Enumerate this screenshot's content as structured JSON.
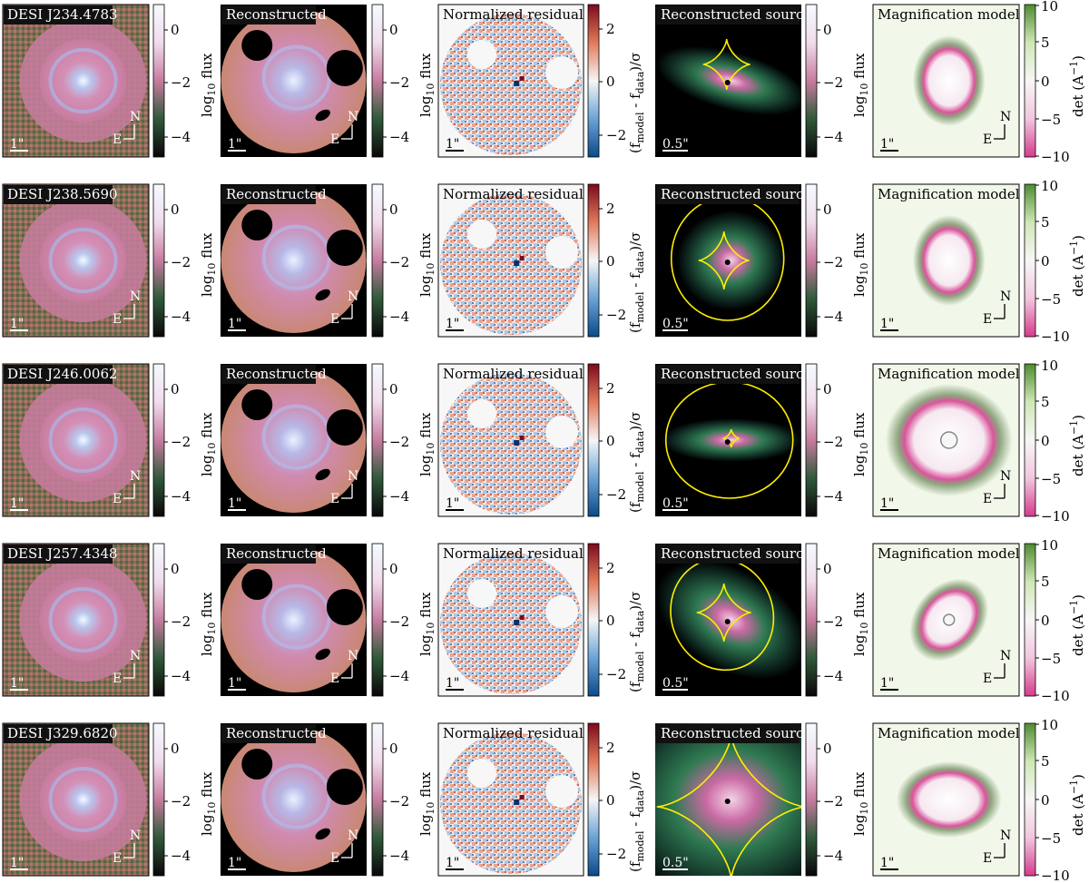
{
  "rows": [
    {
      "target": "DESI J234.4783",
      "source": "crop",
      "caustic": "astroid_small",
      "mag": "narrow"
    },
    {
      "target": "DESI J238.5690",
      "source": "round",
      "caustic": "astroid_plus_ring",
      "mag": "narrow"
    },
    {
      "target": "DESI J246.0062",
      "source": "flat",
      "caustic": "tiny_plus_ring",
      "mag": "wide"
    },
    {
      "target": "DESI J257.4348",
      "source": "tilted",
      "caustic": "astroid_plus_oval",
      "mag": "tilted"
    },
    {
      "target": "DESI J329.6820",
      "source": "large",
      "caustic": "big_astroid",
      "mag": "flat"
    }
  ],
  "panel_titles": {
    "reconstructed": "Reconstructed",
    "residual": "Normalized residual",
    "source": "Reconstructed source",
    "magnification": "Magnification model"
  },
  "scale_bars": {
    "image": "1\"",
    "source": "0.5\""
  },
  "compass": {
    "north": "N",
    "east": "E"
  },
  "colorbars": {
    "flux": {
      "label": "log10 flux",
      "label_base": "log",
      "label_sub": "10",
      "label_rest": " flux",
      "ticks": [
        "0",
        "−2",
        "−4"
      ]
    },
    "residual": {
      "label_open": "(f",
      "label_sub1": "model",
      "label_mid": " - f",
      "label_sub2": "data",
      "label_close": ")/σ",
      "ticks": [
        "2",
        "0",
        "−2"
      ]
    },
    "magnification": {
      "label_base": "det (A",
      "label_sup": "−1",
      "label_close": ")",
      "ticks": [
        "10",
        "5",
        "0",
        "−5",
        "−10"
      ]
    }
  },
  "colors": {
    "flux_cmap": [
      "#0a0608",
      "#2f5a3a",
      "#c77c9f",
      "#f1dcec",
      "#f4fbff"
    ],
    "residual_cmap": [
      "#0a4a8a",
      "#6aa3d6",
      "#f6f6f6",
      "#e17a5a",
      "#7d0a1c"
    ],
    "mag_cmap": [
      "#d63b8d",
      "#f2c6de",
      "#f7f7f7",
      "#cfe7b5",
      "#4e8c31"
    ],
    "caustic": "#ffee00",
    "title_bg": "#111111"
  }
}
